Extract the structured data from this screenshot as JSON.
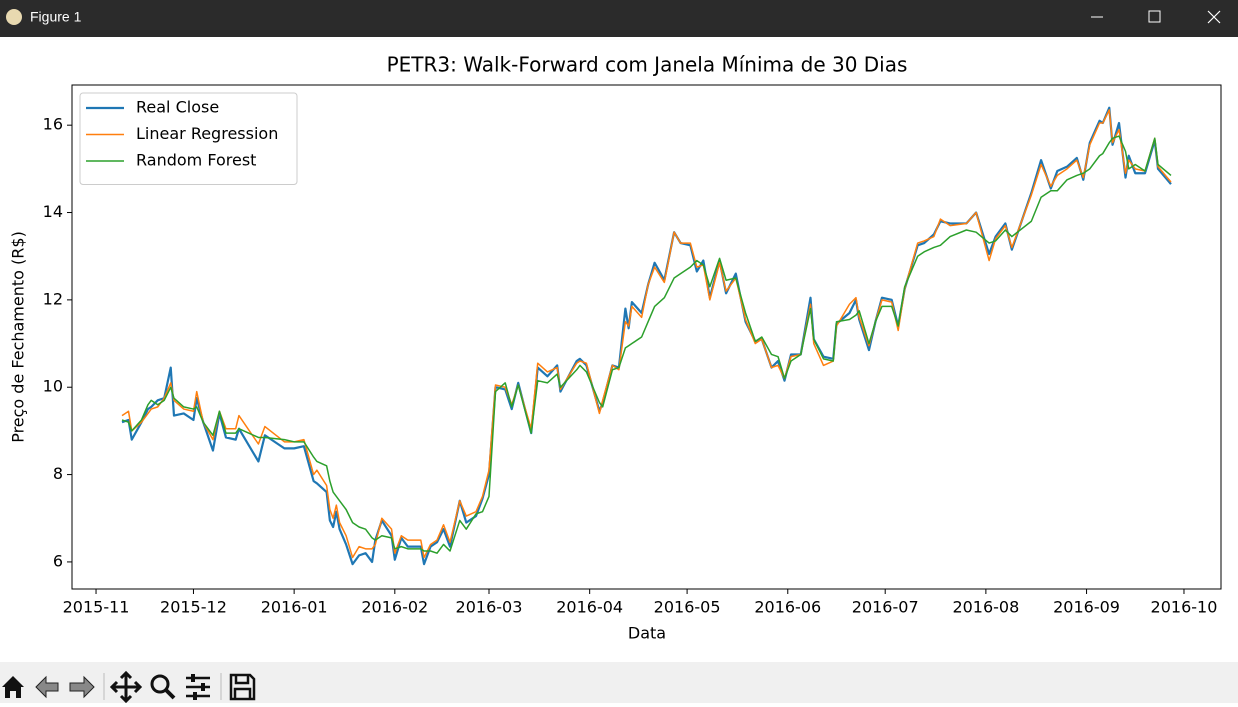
{
  "window_title": "Figure 1",
  "chart_data": {
    "type": "line",
    "title": "PETR3: Walk-Forward com Janela Mínima de 30 Dias",
    "xlabel": "Data",
    "ylabel": "Preço de Fechamento (R$)",
    "legend": "upper left",
    "x": [
      8,
      10,
      11,
      14,
      16,
      17,
      19,
      21,
      23,
      24,
      27,
      30,
      31,
      33,
      36,
      38,
      40,
      43,
      44,
      50,
      52,
      58,
      61,
      64,
      67,
      68,
      71,
      72,
      73,
      74,
      75,
      77,
      79,
      81,
      83,
      85,
      86,
      88,
      91,
      92,
      94,
      96,
      100,
      101,
      103,
      105,
      107,
      109,
      112,
      114,
      117,
      119,
      121,
      123,
      126,
      128,
      130,
      134,
      136,
      139,
      142,
      143,
      148,
      149,
      151,
      155,
      156,
      159,
      161,
      163,
      164,
      165,
      168,
      170,
      172,
      175,
      178,
      180,
      183,
      185,
      187,
      189,
      192,
      194,
      197,
      200,
      203,
      205,
      208,
      210,
      212,
      214,
      217,
      220,
      221,
      224,
      227,
      228,
      232,
      234,
      235,
      238,
      240,
      242,
      245,
      247,
      249,
      253,
      255,
      258,
      260,
      263,
      268,
      271,
      275,
      277,
      280,
      282,
      288,
      291,
      294,
      296,
      299,
      302,
      304,
      306,
      309,
      310,
      312,
      313,
      315,
      317,
      318,
      320,
      323,
      326,
      327,
      331
    ],
    "series": [
      {
        "name": "Real Close",
        "color": "#1f77b4",
        "values": [
          9.2,
          9.25,
          8.8,
          9.2,
          9.5,
          9.55,
          9.7,
          9.75,
          10.45,
          9.35,
          9.4,
          9.25,
          9.75,
          9.2,
          8.55,
          9.4,
          8.85,
          8.8,
          9.05,
          8.3,
          8.9,
          8.6,
          8.6,
          8.65,
          7.85,
          7.8,
          7.6,
          6.95,
          6.8,
          7.15,
          6.75,
          6.4,
          5.95,
          6.15,
          6.2,
          6.0,
          6.5,
          6.95,
          6.6,
          6.05,
          6.55,
          6.35,
          6.35,
          5.95,
          6.35,
          6.45,
          6.75,
          6.35,
          7.4,
          6.9,
          7.05,
          7.45,
          8.0,
          10.0,
          9.95,
          9.5,
          10.1,
          8.95,
          10.45,
          10.25,
          10.5,
          9.9,
          10.6,
          10.65,
          10.5,
          9.45,
          9.65,
          10.5,
          10.45,
          11.8,
          11.35,
          11.95,
          11.7,
          12.35,
          12.85,
          12.45,
          13.55,
          13.3,
          13.25,
          12.65,
          12.9,
          12.05,
          12.9,
          12.15,
          12.6,
          11.5,
          11.05,
          11.1,
          10.45,
          10.6,
          10.15,
          10.75,
          10.75,
          12.05,
          11.1,
          10.7,
          10.65,
          11.45,
          11.7,
          12.0,
          11.55,
          10.85,
          11.5,
          12.05,
          12.0,
          11.4,
          12.25,
          13.25,
          13.3,
          13.5,
          13.8,
          13.75,
          13.75,
          14.0,
          13.05,
          13.45,
          13.75,
          13.15,
          14.45,
          15.2,
          14.55,
          14.95,
          15.05,
          15.25,
          14.75,
          15.6,
          16.1,
          16.05,
          16.4,
          15.55,
          16.05,
          14.8,
          15.3,
          14.9,
          14.9,
          15.65,
          15.0,
          14.65
        ]
      },
      {
        "name": "Linear Regression",
        "color": "#ff7f0e",
        "values": [
          9.35,
          9.45,
          9.0,
          9.2,
          9.4,
          9.5,
          9.55,
          9.75,
          10.1,
          9.7,
          9.5,
          9.45,
          9.9,
          9.2,
          8.8,
          9.45,
          9.05,
          9.05,
          9.35,
          8.7,
          9.1,
          8.75,
          8.75,
          8.8,
          8.0,
          8.1,
          7.75,
          7.2,
          7.0,
          7.3,
          6.9,
          6.6,
          6.1,
          6.35,
          6.3,
          6.3,
          6.4,
          7.0,
          6.75,
          6.2,
          6.6,
          6.5,
          6.5,
          6.1,
          6.4,
          6.5,
          6.85,
          6.45,
          7.4,
          7.05,
          7.15,
          7.5,
          8.1,
          10.05,
          10.0,
          9.6,
          10.05,
          9.05,
          10.55,
          10.35,
          10.45,
          9.95,
          10.55,
          10.6,
          10.55,
          9.4,
          9.7,
          10.5,
          10.4,
          11.5,
          11.4,
          11.85,
          11.6,
          12.35,
          12.75,
          12.4,
          13.55,
          13.3,
          13.3,
          12.75,
          12.8,
          12.0,
          12.85,
          12.2,
          12.5,
          11.55,
          11.0,
          11.1,
          10.45,
          10.5,
          10.2,
          10.7,
          10.75,
          11.9,
          11.0,
          10.5,
          10.6,
          11.4,
          11.9,
          12.05,
          11.6,
          10.95,
          11.5,
          12.0,
          11.95,
          11.3,
          12.25,
          13.3,
          13.35,
          13.45,
          13.85,
          13.7,
          13.75,
          14.0,
          12.9,
          13.4,
          13.7,
          13.2,
          14.4,
          15.1,
          14.6,
          14.85,
          15.0,
          15.2,
          14.8,
          15.55,
          16.05,
          16.05,
          16.35,
          15.6,
          15.9,
          14.9,
          15.2,
          15.0,
          14.95,
          15.7,
          15.05,
          14.7
        ]
      },
      {
        "name": "Random Forest",
        "color": "#2ca02c",
        "values": [
          9.25,
          9.2,
          9.0,
          9.25,
          9.6,
          9.7,
          9.6,
          9.7,
          10.0,
          9.75,
          9.55,
          9.5,
          9.55,
          9.2,
          8.9,
          9.45,
          8.95,
          8.95,
          9.05,
          8.85,
          8.85,
          8.8,
          8.75,
          8.75,
          8.4,
          8.3,
          8.2,
          7.85,
          7.6,
          7.5,
          7.4,
          7.2,
          6.9,
          6.8,
          6.75,
          6.55,
          6.5,
          6.6,
          6.55,
          6.3,
          6.35,
          6.3,
          6.3,
          6.25,
          6.25,
          6.2,
          6.4,
          6.25,
          6.95,
          6.75,
          7.1,
          7.15,
          7.5,
          9.9,
          10.1,
          9.55,
          10.05,
          8.95,
          10.15,
          10.1,
          10.3,
          10.0,
          10.4,
          10.5,
          10.35,
          9.65,
          9.55,
          10.4,
          10.45,
          10.9,
          10.95,
          11.0,
          11.15,
          11.5,
          11.85,
          12.05,
          12.5,
          12.6,
          12.75,
          12.9,
          12.8,
          12.3,
          12.95,
          12.45,
          12.5,
          11.7,
          11.05,
          11.15,
          10.75,
          10.7,
          10.2,
          10.6,
          10.75,
          11.8,
          11.1,
          10.65,
          10.6,
          11.5,
          11.55,
          11.65,
          11.75,
          11.0,
          11.5,
          11.85,
          11.85,
          11.4,
          12.3,
          13.0,
          13.1,
          13.2,
          13.25,
          13.45,
          13.6,
          13.55,
          13.3,
          13.35,
          13.6,
          13.45,
          13.8,
          14.35,
          14.5,
          14.5,
          14.75,
          14.85,
          14.9,
          15.0,
          15.3,
          15.35,
          15.6,
          15.7,
          15.75,
          15.4,
          15.0,
          15.1,
          14.95,
          15.7,
          15.1,
          14.85
        ]
      }
    ],
    "xlim": [
      -7.4,
      346.4
    ],
    "xticks": [
      {
        "value": 0,
        "label": "2015-11"
      },
      {
        "value": 30,
        "label": "2015-12"
      },
      {
        "value": 61,
        "label": "2016-01"
      },
      {
        "value": 92,
        "label": "2016-02"
      },
      {
        "value": 121,
        "label": "2016-03"
      },
      {
        "value": 152,
        "label": "2016-04"
      },
      {
        "value": 182,
        "label": "2016-05"
      },
      {
        "value": 213,
        "label": "2016-06"
      },
      {
        "value": 243,
        "label": "2016-07"
      },
      {
        "value": 274,
        "label": "2016-08"
      },
      {
        "value": 305,
        "label": "2016-09"
      },
      {
        "value": 335,
        "label": "2016-10"
      }
    ],
    "ylim": [
      5.38,
      16.92
    ],
    "yticks": [
      6,
      8,
      10,
      12,
      14,
      16
    ]
  }
}
